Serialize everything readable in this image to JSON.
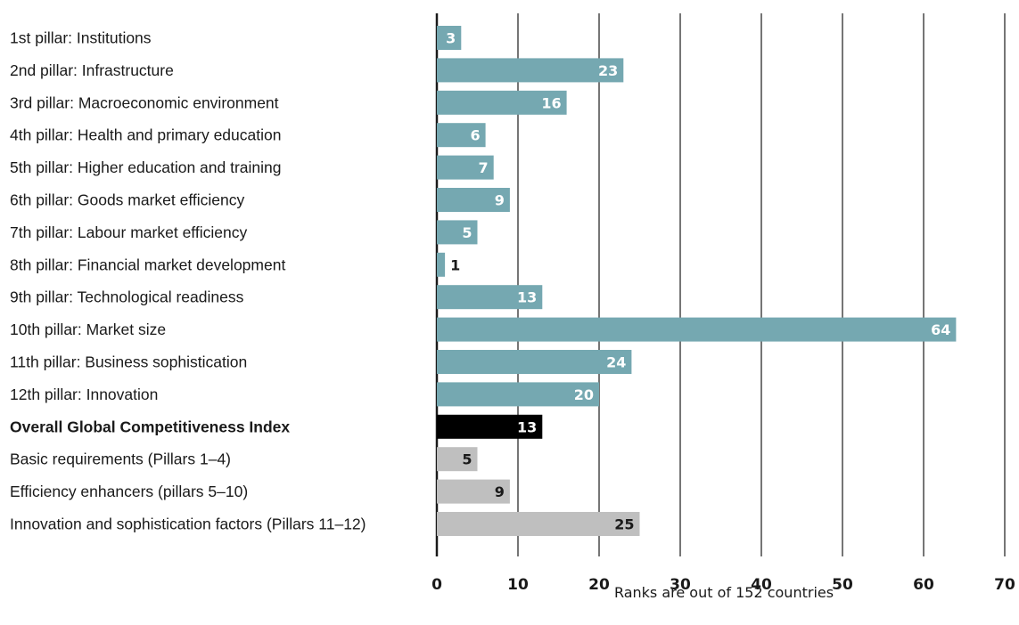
{
  "colors": {
    "pillar": "#75a8b1",
    "overall": "#000000",
    "subindex": "#bfbfbf",
    "grid": "#1a1a1a",
    "text_dark": "#1a1a1a",
    "text_light": "#ffffff"
  },
  "chart_data": {
    "type": "bar",
    "orientation": "horizontal",
    "title": "",
    "xlabel": "Ranks are out of 152 countries",
    "ylabel": "",
    "xlim": [
      0,
      70
    ],
    "xticks": [
      "0",
      "10",
      "20",
      "30",
      "40",
      "50",
      "60",
      "70"
    ],
    "grid": "vertical lines at each tick",
    "legend": "none",
    "categories": [
      "1st pillar: Institutions",
      "2nd pillar: Infrastructure",
      "3rd pillar: Macroeconomic environment",
      "4th pillar: Health and primary education",
      "5th pillar: Higher education and training",
      "6th pillar: Goods market efficiency",
      "7th pillar: Labour market efficiency",
      "8th pillar: Financial market development",
      "9th pillar: Technological readiness",
      "10th pillar: Market size",
      "11th pillar: Business sophistication",
      "12th pillar: Innovation",
      "Overall Global Competitiveness Index",
      "Basic requirements (Pillars 1–4)",
      "Efficiency enhancers (pillars 5–10)",
      "Innovation and sophistication factors (Pillars 11–12)"
    ],
    "values": [
      3,
      23,
      16,
      6,
      7,
      9,
      5,
      1,
      13,
      64,
      24,
      20,
      13,
      5,
      9,
      25
    ],
    "value_labels": [
      "3",
      "23",
      "16",
      "6",
      "7",
      "9",
      "5",
      "1",
      "13",
      "64",
      "24",
      "20",
      "13",
      "5",
      "9",
      "25"
    ],
    "groups": [
      "pillar",
      "pillar",
      "pillar",
      "pillar",
      "pillar",
      "pillar",
      "pillar",
      "pillar",
      "pillar",
      "pillar",
      "pillar",
      "pillar",
      "overall",
      "subindex",
      "subindex",
      "subindex"
    ]
  }
}
